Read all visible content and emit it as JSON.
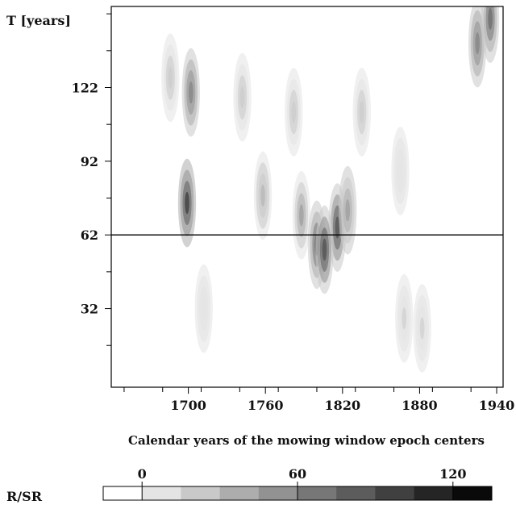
{
  "chart_data": {
    "type": "heatmap",
    "title": "",
    "ylabel": "T [years]",
    "xlabel": "Calendar years of the mowing window epoch centers",
    "xlim": [
      1640,
      1945
    ],
    "ylim": [
      0,
      155
    ],
    "x_ticks": [
      1700,
      1760,
      1820,
      1880,
      1940
    ],
    "y_ticks": [
      32,
      62,
      92,
      122
    ],
    "reference_line_y": 62,
    "colorbar": {
      "label": "R/SR",
      "ticks": [
        0,
        60,
        120
      ],
      "range": [
        -15,
        135
      ],
      "levels": 10
    },
    "hotspots": [
      {
        "x": 1699,
        "y": 75,
        "value": 120
      },
      {
        "x": 1686,
        "y": 126,
        "value": 25
      },
      {
        "x": 1702,
        "y": 120,
        "value": 70
      },
      {
        "x": 1758,
        "y": 78,
        "value": 40
      },
      {
        "x": 1742,
        "y": 118,
        "value": 25
      },
      {
        "x": 1788,
        "y": 70,
        "value": 55
      },
      {
        "x": 1800,
        "y": 58,
        "value": 95
      },
      {
        "x": 1816,
        "y": 65,
        "value": 115
      },
      {
        "x": 1806,
        "y": 56,
        "value": 118
      },
      {
        "x": 1824,
        "y": 72,
        "value": 60
      },
      {
        "x": 1782,
        "y": 112,
        "value": 30
      },
      {
        "x": 1835,
        "y": 112,
        "value": 30
      },
      {
        "x": 1865,
        "y": 88,
        "value": 15
      },
      {
        "x": 1925,
        "y": 140,
        "value": 80
      },
      {
        "x": 1935,
        "y": 150,
        "value": 95
      },
      {
        "x": 1868,
        "y": 28,
        "value": 18
      },
      {
        "x": 1882,
        "y": 24,
        "value": 22
      },
      {
        "x": 1712,
        "y": 32,
        "value": 12
      }
    ]
  }
}
